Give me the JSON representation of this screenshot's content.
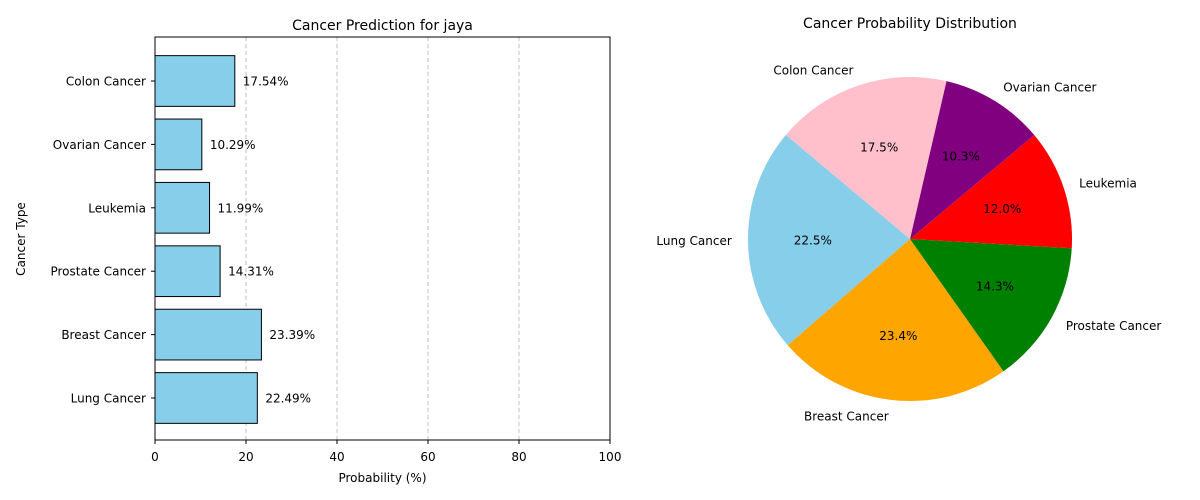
{
  "chart_data": [
    {
      "type": "bar",
      "orientation": "horizontal",
      "title": "Cancer Prediction for jaya",
      "xlabel": "Probability (%)",
      "ylabel": "Cancer Type",
      "xlim": [
        0,
        100
      ],
      "xticks": [
        "0",
        "20",
        "40",
        "60",
        "80",
        "100"
      ],
      "categories": [
        "Lung Cancer",
        "Breast Cancer",
        "Prostate Cancer",
        "Leukemia",
        "Ovarian Cancer",
        "Colon Cancer"
      ],
      "values": [
        22.49,
        23.39,
        14.31,
        11.99,
        10.29,
        17.54
      ],
      "value_labels": [
        "22.49%",
        "23.39%",
        "14.31%",
        "11.99%",
        "10.29%",
        "17.54%"
      ],
      "bar_color": "#87ceeb",
      "edge_color": "#000000",
      "grid": "x-axis dashed"
    },
    {
      "type": "pie",
      "title": "Cancer Probability Distribution",
      "start_angle_deg": 140,
      "direction": "counterclockwise",
      "slices": [
        {
          "label": "Lung Cancer",
          "value": 22.5,
          "pct_label": "22.5%",
          "color": "#87ceeb"
        },
        {
          "label": "Breast Cancer",
          "value": 23.4,
          "pct_label": "23.4%",
          "color": "#ffa500"
        },
        {
          "label": "Prostate Cancer",
          "value": 14.3,
          "pct_label": "14.3%",
          "color": "#008000"
        },
        {
          "label": "Leukemia",
          "value": 12.0,
          "pct_label": "12.0%",
          "color": "#ff0000"
        },
        {
          "label": "Ovarian Cancer",
          "value": 10.3,
          "pct_label": "10.3%",
          "color": "#800080"
        },
        {
          "label": "Colon Cancer",
          "value": 17.5,
          "pct_label": "17.5%",
          "color": "#ffc0cb"
        }
      ]
    }
  ]
}
